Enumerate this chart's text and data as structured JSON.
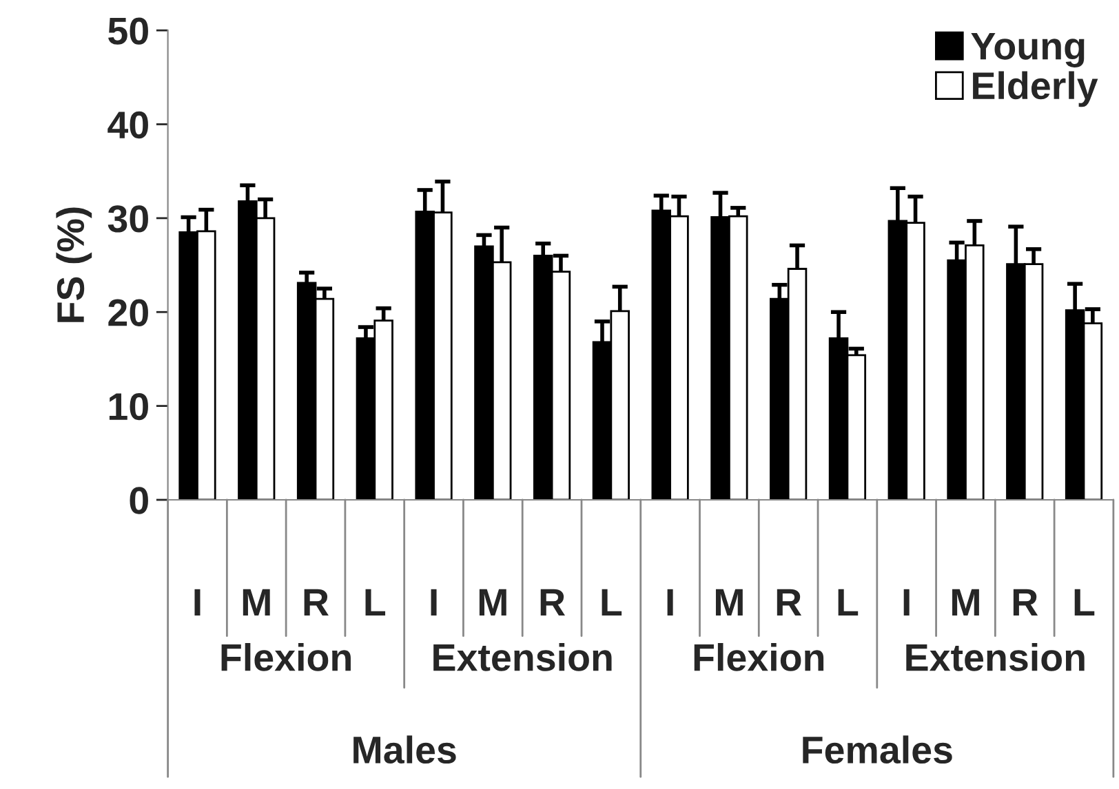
{
  "chart_data": {
    "type": "bar",
    "ylabel": "FS (%)",
    "categories": [
      "I",
      "M",
      "R",
      "L",
      "I",
      "M",
      "R",
      "L",
      "I",
      "M",
      "R",
      "L",
      "I",
      "M",
      "R",
      "L"
    ],
    "series": [
      {
        "name": "Young",
        "color": "#000000",
        "values": [
          28.5,
          31.8,
          23.1,
          17.2,
          30.7,
          27.0,
          26.0,
          16.8,
          30.8,
          30.1,
          21.4,
          17.2,
          29.7,
          25.5,
          25.1,
          20.2
        ],
        "errors": [
          [
            28.5,
            30.1
          ],
          [
            31.8,
            33.5
          ],
          [
            23.1,
            24.2
          ],
          [
            17.2,
            18.4
          ],
          [
            30.7,
            33.0
          ],
          [
            27.0,
            28.2
          ],
          [
            26.0,
            27.3
          ],
          [
            16.8,
            19.0
          ],
          [
            30.8,
            32.4
          ],
          [
            30.1,
            32.7
          ],
          [
            21.4,
            22.9
          ],
          [
            17.2,
            20.0
          ],
          [
            29.7,
            33.2
          ],
          [
            25.5,
            27.4
          ],
          [
            25.1,
            29.1
          ],
          [
            20.2,
            23.0
          ]
        ]
      },
      {
        "name": "Elderly",
        "color": "#ffffff",
        "values": [
          28.6,
          30.0,
          21.4,
          19.1,
          30.6,
          25.3,
          24.3,
          20.1,
          30.2,
          30.2,
          24.6,
          15.4,
          29.5,
          27.1,
          25.1,
          18.8
        ],
        "errors": [
          [
            28.6,
            30.9
          ],
          [
            30.0,
            32.0
          ],
          [
            21.4,
            22.5
          ],
          [
            19.1,
            20.4
          ],
          [
            30.6,
            33.9
          ],
          [
            25.3,
            29.0
          ],
          [
            24.3,
            26.0
          ],
          [
            20.1,
            22.7
          ],
          [
            30.2,
            32.3
          ],
          [
            30.2,
            31.1
          ],
          [
            24.6,
            27.1
          ],
          [
            15.4,
            16.1
          ],
          [
            29.5,
            32.3
          ],
          [
            27.1,
            29.7
          ],
          [
            25.1,
            26.7
          ],
          [
            18.8,
            20.3
          ]
        ]
      }
    ],
    "annotations": [
      "Flexion",
      "Extension",
      "Flexion",
      "Extension",
      "Males",
      "Females"
    ],
    "ylim": [
      0,
      50
    ],
    "yticks": [
      0,
      10,
      20,
      30,
      40,
      50
    ],
    "grid": false,
    "legend": "top right"
  }
}
